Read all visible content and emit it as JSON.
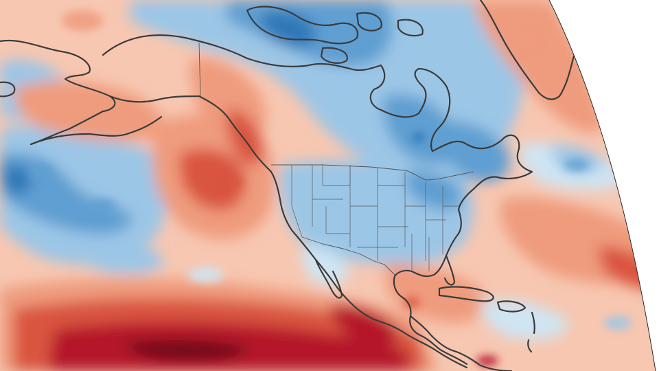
{
  "map": {
    "palette": {
      "strong_cool": "#2f78b8",
      "cool": "#5e9fd2",
      "mild_cool": "#9cc6e6",
      "slight_cool": "#cfe5f3",
      "neutral": "#f5efe9",
      "slight_warm": "#f7c7b1",
      "warm": "#ef9b7d",
      "strong_warm": "#d9553f",
      "very_warm": "#b5172a",
      "extreme_warm": "#6d0718",
      "outline": "#3b3b3b"
    },
    "regions": [
      "north-pacific",
      "alaska",
      "canada",
      "canadian-arctic-archipelago",
      "greenland",
      "contiguous-united-states",
      "mexico",
      "central-america",
      "caribbean",
      "north-atlantic",
      "eastern-tropical-pacific"
    ]
  }
}
